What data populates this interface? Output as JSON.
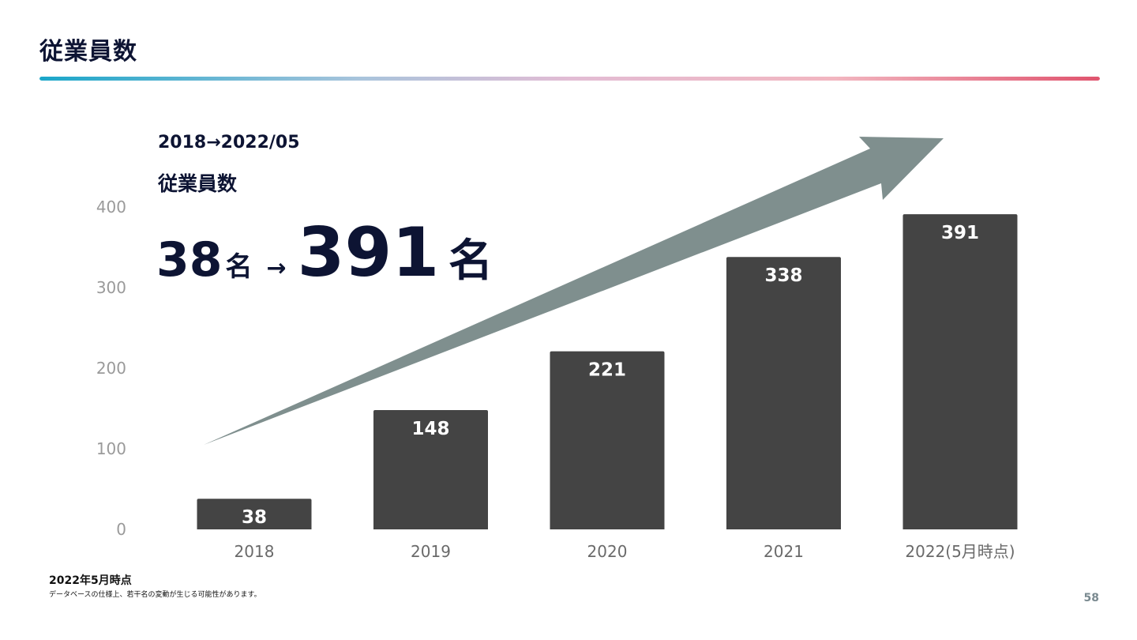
{
  "slide": {
    "title": "従業員数",
    "rule_gradient": [
      "#1aa6c9",
      "#a8c4dc",
      "#e2bcd4",
      "#f2b6c0",
      "#e0546e"
    ],
    "headline_period": "2018→2022/05",
    "headline_label": "従業員数",
    "headline_from": "38",
    "headline_from_unit": "名",
    "headline_arrow": "→",
    "headline_to": "391",
    "headline_to_unit": "名",
    "footnote_date": "2022年5月時点",
    "footnote_text": "データベースの仕様上、若干名の変動が生じる可能性があります。",
    "page_number": "58"
  },
  "chart_data": {
    "type": "bar",
    "categories": [
      "2018",
      "2019",
      "2020",
      "2021",
      "2022(5月時点)"
    ],
    "series": [
      {
        "values": [
          38,
          148,
          221,
          338,
          391
        ]
      }
    ],
    "data_labels": [
      "38",
      "148",
      "221",
      "338",
      "391"
    ],
    "yticks": [
      "0",
      "100",
      "200",
      "300",
      "400"
    ],
    "ylim": [
      0,
      400
    ],
    "title": "",
    "xlabel": "",
    "ylabel": "",
    "grid": false,
    "legend": "none",
    "bar_color": "#444444",
    "label_color": "#ffffff",
    "tick_color": "#9a9a9a",
    "trend_arrow_color": "#7f8f8e"
  }
}
